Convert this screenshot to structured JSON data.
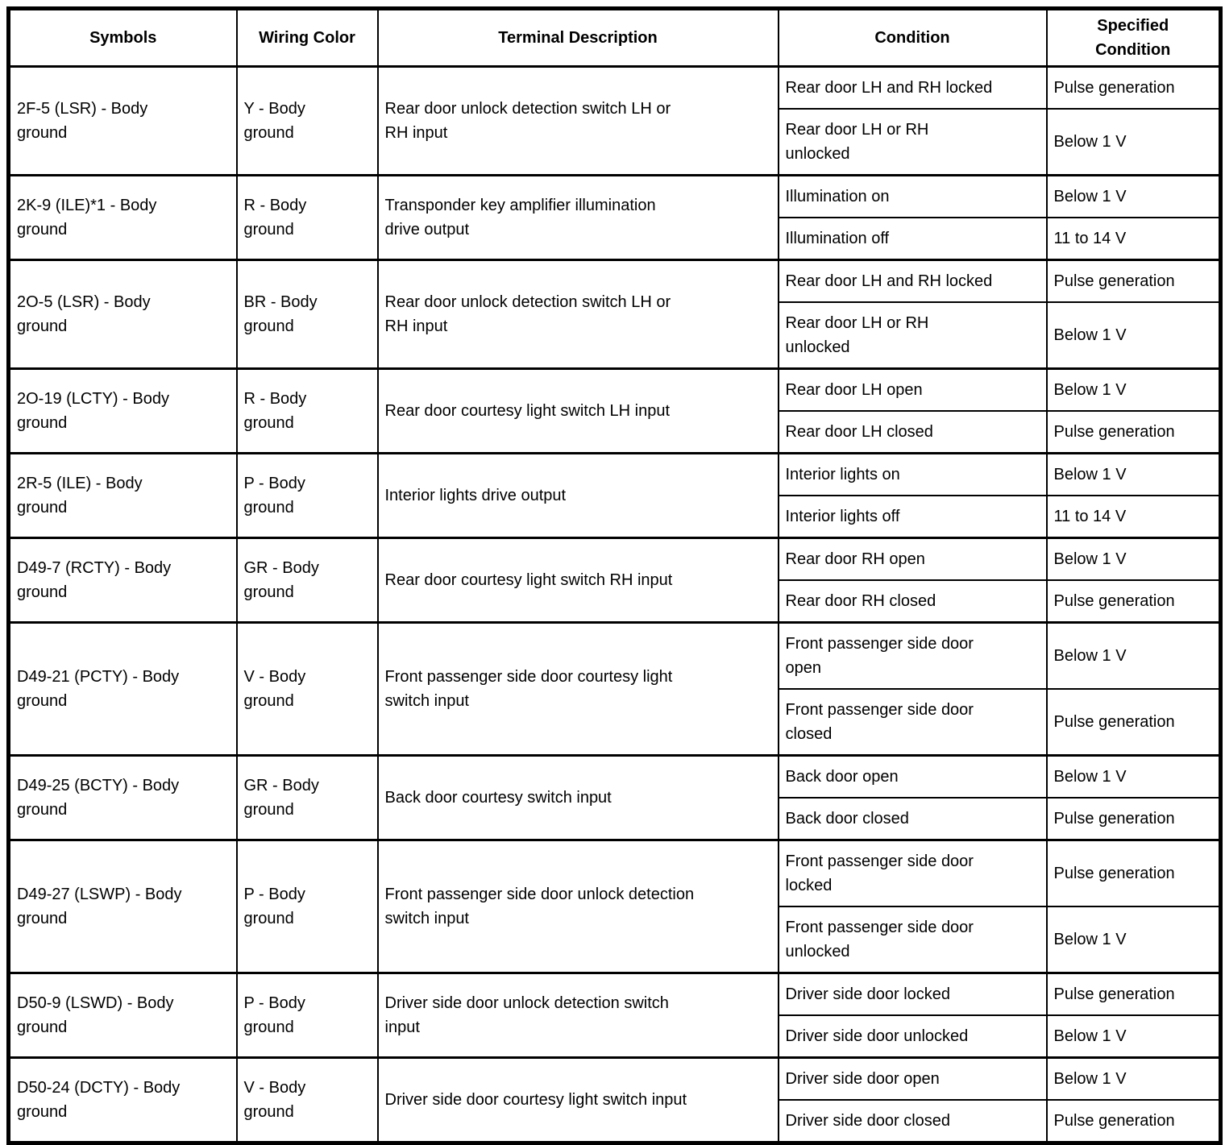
{
  "table": {
    "headers": [
      "Symbols",
      "Wiring Color",
      "Terminal Description",
      "Condition",
      "Specified\nCondition"
    ],
    "rows": [
      {
        "symbol": "2F-5 (LSR) - Body\nground",
        "wiring_color": "Y - Body\nground",
        "terminal_description": "Rear door unlock detection switch LH or\nRH input",
        "conditions": [
          {
            "condition": "Rear door LH and RH locked",
            "specified": "Pulse generation"
          },
          {
            "condition": "Rear door LH or RH\nunlocked",
            "specified": "Below 1 V"
          }
        ]
      },
      {
        "symbol": "2K-9 (ILE)*1 - Body\nground",
        "wiring_color": "R - Body\nground",
        "terminal_description": "Transponder key amplifier illumination\ndrive output",
        "conditions": [
          {
            "condition": "Illumination on",
            "specified": "Below 1 V"
          },
          {
            "condition": "Illumination off",
            "specified": "11 to 14 V"
          }
        ]
      },
      {
        "symbol": "2O-5 (LSR) - Body\nground",
        "wiring_color": "BR - Body\nground",
        "terminal_description": "Rear door unlock detection switch LH or\nRH input",
        "conditions": [
          {
            "condition": "Rear door LH and RH locked",
            "specified": "Pulse generation"
          },
          {
            "condition": "Rear door LH or RH\nunlocked",
            "specified": "Below 1 V"
          }
        ]
      },
      {
        "symbol": "2O-19 (LCTY) - Body\nground",
        "wiring_color": "R - Body\nground",
        "terminal_description": "Rear door courtesy light switch LH input",
        "conditions": [
          {
            "condition": "Rear door LH open",
            "specified": "Below 1 V"
          },
          {
            "condition": "Rear door LH closed",
            "specified": "Pulse generation"
          }
        ]
      },
      {
        "symbol": "2R-5 (ILE) - Body\nground",
        "wiring_color": "P - Body\nground",
        "terminal_description": "Interior lights drive output",
        "conditions": [
          {
            "condition": "Interior lights on",
            "specified": "Below 1 V"
          },
          {
            "condition": "Interior lights off",
            "specified": "11 to 14 V"
          }
        ]
      },
      {
        "symbol": "D49-7 (RCTY) - Body\nground",
        "wiring_color": "GR - Body\nground",
        "terminal_description": "Rear door courtesy light switch RH input",
        "conditions": [
          {
            "condition": "Rear door RH open",
            "specified": "Below 1 V"
          },
          {
            "condition": "Rear door RH closed",
            "specified": "Pulse generation"
          }
        ]
      },
      {
        "symbol": "D49-21 (PCTY) - Body\nground",
        "wiring_color": "V - Body\nground",
        "terminal_description": "Front passenger side door courtesy light\nswitch input",
        "conditions": [
          {
            "condition": "Front passenger side door\nopen",
            "specified": "Below 1 V"
          },
          {
            "condition": "Front passenger side door\nclosed",
            "specified": "Pulse generation"
          }
        ]
      },
      {
        "symbol": "D49-25 (BCTY) - Body\nground",
        "wiring_color": "GR - Body\nground",
        "terminal_description": "Back door courtesy switch input",
        "conditions": [
          {
            "condition": "Back door open",
            "specified": "Below 1 V"
          },
          {
            "condition": "Back door closed",
            "specified": "Pulse generation"
          }
        ]
      },
      {
        "symbol": "D49-27 (LSWP) - Body\nground",
        "wiring_color": "P - Body\nground",
        "terminal_description": "Front passenger side door unlock detection\nswitch input",
        "conditions": [
          {
            "condition": "Front passenger side door\nlocked",
            "specified": "Pulse generation"
          },
          {
            "condition": "Front passenger side door\nunlocked",
            "specified": "Below 1 V"
          }
        ]
      },
      {
        "symbol": "D50-9 (LSWD) - Body\nground",
        "wiring_color": "P - Body\nground",
        "terminal_description": "Driver side door unlock detection switch\ninput",
        "conditions": [
          {
            "condition": "Driver side door locked",
            "specified": "Pulse generation"
          },
          {
            "condition": "Driver side door unlocked",
            "specified": "Below 1 V"
          }
        ]
      },
      {
        "symbol": "D50-24 (DCTY) - Body\nground",
        "wiring_color": "V - Body\nground",
        "terminal_description": "Driver side door courtesy light switch input",
        "conditions": [
          {
            "condition": "Driver side door open",
            "specified": "Below 1 V"
          },
          {
            "condition": "Driver side door closed",
            "specified": "Pulse generation"
          }
        ]
      }
    ]
  }
}
